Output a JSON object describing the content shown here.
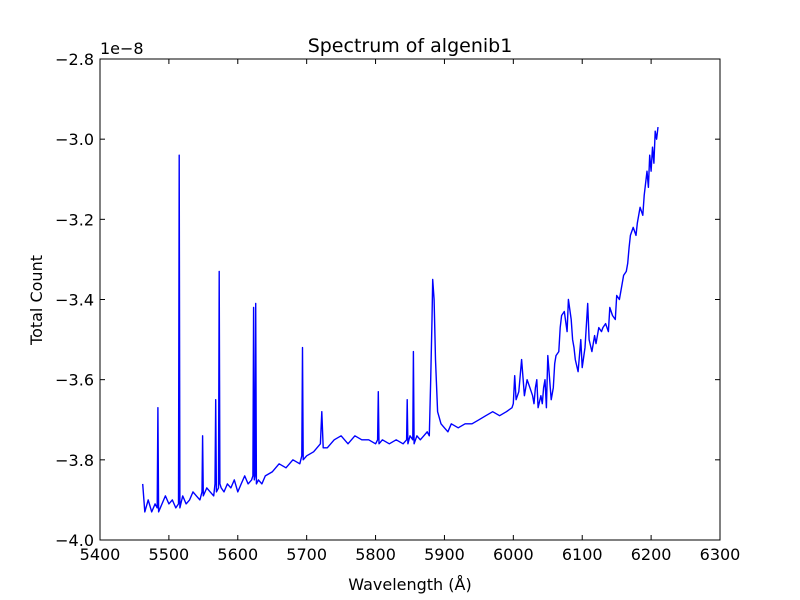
{
  "chart_data": {
    "type": "line",
    "title": "Spectrum of algenib1",
    "xlabel": "Wavelength (Å)",
    "ylabel": "Total Count",
    "offset_text": "1e−8",
    "xlim": [
      5400,
      6300
    ],
    "ylim": [
      -4.0,
      -2.8
    ],
    "y_scale_factor": 1e-08,
    "x_ticks": [
      5400,
      5500,
      5600,
      5700,
      5800,
      5900,
      6000,
      6100,
      6200,
      6300
    ],
    "x_tick_labels": [
      "5400",
      "5500",
      "5600",
      "5700",
      "5800",
      "5900",
      "6000",
      "6100",
      "6200",
      "6300"
    ],
    "y_ticks": [
      -4.0,
      -3.8,
      -3.6,
      -3.4,
      -3.2,
      -3.0,
      -2.8
    ],
    "y_tick_labels": [
      "−4.0",
      "−3.8",
      "−3.6",
      "−3.4",
      "−3.2",
      "−3.0",
      "−2.8"
    ],
    "grid": false,
    "series": [
      {
        "color": "#0000ff",
        "x": [
          5462,
          5465,
          5470,
          5475,
          5480,
          5483,
          5484,
          5485,
          5490,
          5495,
          5500,
          5505,
          5510,
          5514,
          5515,
          5516,
          5520,
          5525,
          5530,
          5535,
          5540,
          5545,
          5548,
          5549,
          5550,
          5555,
          5560,
          5565,
          5567,
          5568,
          5569,
          5572,
          5573,
          5574,
          5576,
          5580,
          5585,
          5590,
          5595,
          5600,
          5605,
          5610,
          5615,
          5620,
          5622,
          5623,
          5624,
          5625,
          5626,
          5627,
          5630,
          5635,
          5640,
          5650,
          5660,
          5670,
          5680,
          5690,
          5693,
          5694,
          5695,
          5700,
          5710,
          5720,
          5722,
          5724,
          5730,
          5740,
          5750,
          5760,
          5770,
          5780,
          5790,
          5800,
          5803,
          5804,
          5805,
          5810,
          5820,
          5830,
          5840,
          5845,
          5846,
          5847,
          5850,
          5854,
          5855,
          5856,
          5860,
          5865,
          5870,
          5875,
          5878,
          5880,
          5882,
          5883,
          5885,
          5887,
          5890,
          5895,
          5900,
          5905,
          5910,
          5920,
          5930,
          5940,
          5950,
          5960,
          5970,
          5980,
          5990,
          5998,
          6000,
          6002,
          6004,
          6008,
          6012,
          6016,
          6020,
          6024,
          6028,
          6030,
          6032,
          6034,
          6036,
          6040,
          6042,
          6044,
          6046,
          6048,
          6050,
          6055,
          6058,
          6060,
          6062,
          6066,
          6068,
          6070,
          6074,
          6078,
          6080,
          6084,
          6086,
          6088,
          6090,
          6094,
          6098,
          6100,
          6104,
          6108,
          6110,
          6114,
          6118,
          6120,
          6124,
          6128,
          6130,
          6134,
          6138,
          6140,
          6144,
          6148,
          6150,
          6154,
          6158,
          6160,
          6164,
          6166,
          6168,
          6170,
          6174,
          6178,
          6180,
          6184,
          6188,
          6190,
          6194,
          6196,
          6198,
          6200,
          6202,
          6204,
          6206,
          6208,
          6210
        ],
        "y": [
          -3.86,
          -3.93,
          -3.9,
          -3.93,
          -3.91,
          -3.92,
          -3.67,
          -3.93,
          -3.91,
          -3.89,
          -3.91,
          -3.9,
          -3.92,
          -3.91,
          -3.04,
          -3.92,
          -3.89,
          -3.91,
          -3.9,
          -3.88,
          -3.89,
          -3.9,
          -3.88,
          -3.74,
          -3.89,
          -3.87,
          -3.88,
          -3.89,
          -3.86,
          -3.65,
          -3.88,
          -3.87,
          -3.33,
          -3.86,
          -3.87,
          -3.88,
          -3.86,
          -3.87,
          -3.85,
          -3.88,
          -3.86,
          -3.84,
          -3.86,
          -3.85,
          -3.84,
          -3.42,
          -3.85,
          -3.84,
          -3.41,
          -3.86,
          -3.85,
          -3.86,
          -3.84,
          -3.83,
          -3.81,
          -3.82,
          -3.8,
          -3.81,
          -3.79,
          -3.52,
          -3.8,
          -3.79,
          -3.78,
          -3.76,
          -3.68,
          -3.77,
          -3.77,
          -3.75,
          -3.74,
          -3.76,
          -3.74,
          -3.75,
          -3.75,
          -3.76,
          -3.75,
          -3.63,
          -3.76,
          -3.75,
          -3.76,
          -3.75,
          -3.76,
          -3.75,
          -3.65,
          -3.76,
          -3.74,
          -3.75,
          -3.53,
          -3.76,
          -3.74,
          -3.75,
          -3.74,
          -3.73,
          -3.74,
          -3.6,
          -3.45,
          -3.35,
          -3.4,
          -3.55,
          -3.68,
          -3.71,
          -3.72,
          -3.73,
          -3.71,
          -3.72,
          -3.71,
          -3.71,
          -3.7,
          -3.69,
          -3.68,
          -3.69,
          -3.68,
          -3.67,
          -3.66,
          -3.59,
          -3.65,
          -3.63,
          -3.55,
          -3.64,
          -3.6,
          -3.62,
          -3.64,
          -3.66,
          -3.62,
          -3.6,
          -3.67,
          -3.64,
          -3.66,
          -3.62,
          -3.6,
          -3.67,
          -3.54,
          -3.65,
          -3.62,
          -3.56,
          -3.54,
          -3.53,
          -3.47,
          -3.44,
          -3.43,
          -3.48,
          -3.4,
          -3.45,
          -3.5,
          -3.52,
          -3.55,
          -3.58,
          -3.5,
          -3.57,
          -3.52,
          -3.41,
          -3.5,
          -3.53,
          -3.49,
          -3.51,
          -3.47,
          -3.48,
          -3.47,
          -3.46,
          -3.48,
          -3.42,
          -3.44,
          -3.45,
          -3.39,
          -3.4,
          -3.36,
          -3.34,
          -3.33,
          -3.31,
          -3.27,
          -3.24,
          -3.22,
          -3.24,
          -3.21,
          -3.17,
          -3.19,
          -3.14,
          -3.08,
          -3.12,
          -3.04,
          -3.08,
          -3.02,
          -3.06,
          -2.98,
          -3.0,
          -2.97
        ]
      }
    ]
  }
}
